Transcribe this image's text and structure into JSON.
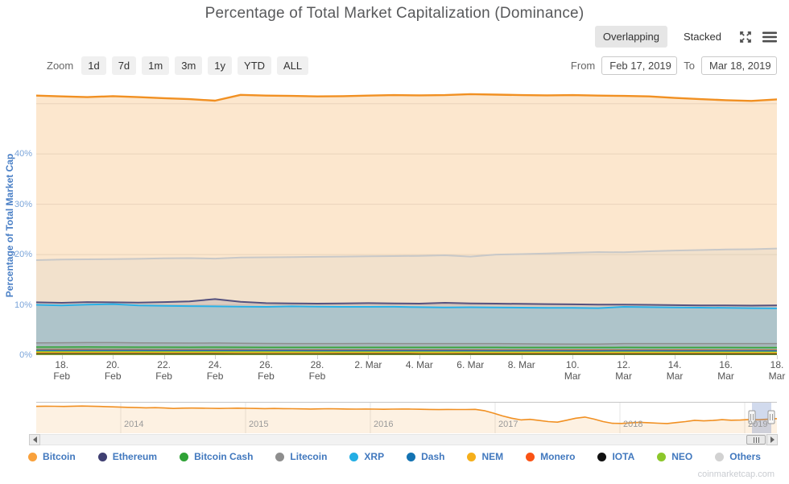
{
  "title": "Percentage of Total Market Capitalization (Dominance)",
  "watermark": "coinmarketcap.com",
  "mode_toggle": {
    "overlapping": "Overlapping",
    "stacked": "Stacked"
  },
  "range_selector": {
    "zoom_label": "Zoom",
    "buttons": [
      "1d",
      "7d",
      "1m",
      "3m",
      "1y",
      "YTD",
      "ALL"
    ],
    "from_label": "From",
    "from_value": "Feb 17, 2019",
    "to_label": "To",
    "to_value": "Mar 18, 2019"
  },
  "y_axis": {
    "title": "Percentage of Total Market Cap",
    "tick_labels": [
      {
        "value": 0,
        "label": "0%"
      },
      {
        "value": 10,
        "label": "10%"
      },
      {
        "value": 20,
        "label": "20%"
      },
      {
        "value": 30,
        "label": "30%"
      },
      {
        "value": 40,
        "label": "40%"
      }
    ],
    "gridlines": [
      0,
      10,
      20,
      30,
      40,
      50
    ],
    "max": 53.8
  },
  "x_axis": {
    "ticks": [
      {
        "day": 1,
        "l1": "18.",
        "l2": "Feb"
      },
      {
        "day": 3,
        "l1": "20.",
        "l2": "Feb"
      },
      {
        "day": 5,
        "l1": "22.",
        "l2": "Feb"
      },
      {
        "day": 7,
        "l1": "24.",
        "l2": "Feb"
      },
      {
        "day": 9,
        "l1": "26.",
        "l2": "Feb"
      },
      {
        "day": 11,
        "l1": "28.",
        "l2": "Feb"
      },
      {
        "day": 13,
        "l1": "2. Mar",
        "l2": ""
      },
      {
        "day": 15,
        "l1": "4. Mar",
        "l2": ""
      },
      {
        "day": 17,
        "l1": "6. Mar",
        "l2": ""
      },
      {
        "day": 19,
        "l1": "8. Mar",
        "l2": ""
      },
      {
        "day": 21,
        "l1": "10.",
        "l2": "Mar"
      },
      {
        "day": 23,
        "l1": "12.",
        "l2": "Mar"
      },
      {
        "day": 25,
        "l1": "14.",
        "l2": "Mar"
      },
      {
        "day": 27,
        "l1": "16.",
        "l2": "Mar"
      },
      {
        "day": 29,
        "l1": "18.",
        "l2": "Mar"
      }
    ]
  },
  "chart_data": {
    "type": "area",
    "mode": "overlapping",
    "x_start": "Feb 17, 2019",
    "x_end": "Mar 18, 2019",
    "days": 29,
    "ylim": [
      0,
      53.8
    ],
    "ylabel": "Percentage of Total Market Cap",
    "grid": true,
    "legend_position": "bottom",
    "series": [
      {
        "name": "Bitcoin",
        "color": "#F19022",
        "fill_opacity": 0.22,
        "line_width": 2.4,
        "values": [
          51.6,
          51.45,
          51.3,
          51.5,
          51.3,
          51.1,
          50.9,
          50.6,
          51.75,
          51.6,
          51.55,
          51.45,
          51.5,
          51.6,
          51.7,
          51.65,
          51.7,
          51.9,
          51.8,
          51.7,
          51.65,
          51.7,
          51.6,
          51.55,
          51.45,
          51.15,
          50.9,
          50.7,
          50.55,
          50.85
        ]
      },
      {
        "name": "Others",
        "color": "#c8c8c8",
        "fill_opacity": 0.18,
        "line_width": 2,
        "values": [
          18.9,
          19.0,
          19.05,
          19.1,
          19.15,
          19.25,
          19.3,
          19.2,
          19.4,
          19.45,
          19.5,
          19.55,
          19.6,
          19.65,
          19.7,
          19.75,
          19.85,
          19.6,
          20.0,
          20.1,
          20.2,
          20.35,
          20.5,
          20.45,
          20.65,
          20.8,
          20.9,
          21.0,
          21.05,
          21.2
        ]
      },
      {
        "name": "Ethereum",
        "color": "#55517e",
        "fill_opacity": 0.15,
        "line_width": 2,
        "values": [
          10.5,
          10.4,
          10.55,
          10.5,
          10.45,
          10.55,
          10.7,
          11.15,
          10.6,
          10.35,
          10.3,
          10.25,
          10.3,
          10.35,
          10.3,
          10.25,
          10.4,
          10.3,
          10.25,
          10.2,
          10.15,
          10.1,
          10.05,
          10.05,
          10.0,
          9.95,
          9.9,
          9.9,
          9.85,
          9.9
        ]
      },
      {
        "name": "XRP",
        "color": "#28b1e8",
        "fill_opacity": 0.25,
        "line_width": 2,
        "values": [
          10.0,
          9.9,
          10.05,
          10.15,
          9.9,
          9.8,
          9.75,
          9.7,
          9.65,
          9.6,
          9.7,
          9.65,
          9.6,
          9.6,
          9.62,
          9.55,
          9.5,
          9.52,
          9.5,
          9.45,
          9.4,
          9.4,
          9.35,
          9.6,
          9.55,
          9.5,
          9.45,
          9.4,
          9.35,
          9.3
        ]
      },
      {
        "name": "Dash",
        "color": "#1673b9",
        "fill_opacity": 0.15,
        "line_width": 1.5,
        "values": [
          0.96,
          0.95,
          0.95,
          0.94,
          0.94,
          0.93,
          0.93,
          0.92,
          0.92,
          0.91,
          0.91,
          0.9,
          0.9,
          0.9,
          0.9,
          0.89,
          0.89,
          0.89,
          0.88,
          0.88,
          0.88,
          0.87,
          0.87,
          0.88,
          0.88,
          0.87,
          0.87,
          0.86,
          0.86,
          0.86
        ]
      },
      {
        "name": "Litecoin",
        "color": "#8e8e8e",
        "fill_opacity": 0.25,
        "line_width": 1.5,
        "values": [
          2.45,
          2.46,
          2.5,
          2.5,
          2.45,
          2.42,
          2.4,
          2.42,
          2.35,
          2.32,
          2.3,
          2.3,
          2.31,
          2.32,
          2.3,
          2.3,
          2.31,
          2.3,
          2.3,
          2.26,
          2.22,
          2.2,
          2.2,
          2.3,
          2.3,
          2.31,
          2.3,
          2.3,
          2.3,
          2.3
        ]
      },
      {
        "name": "Bitcoin Cash",
        "color": "#36a537",
        "fill_opacity": 0.25,
        "line_width": 1.5,
        "values": [
          1.62,
          1.61,
          1.63,
          1.62,
          1.6,
          1.6,
          1.59,
          1.6,
          1.58,
          1.57,
          1.57,
          1.56,
          1.56,
          1.57,
          1.56,
          1.55,
          1.56,
          1.55,
          1.55,
          1.54,
          1.54,
          1.53,
          1.53,
          1.55,
          1.54,
          1.54,
          1.53,
          1.53,
          1.52,
          1.52
        ]
      },
      {
        "name": "Monero",
        "color": "#fb4e14",
        "fill_opacity": 0.2,
        "line_width": 1.5,
        "values": [
          1.06,
          1.05,
          1.05,
          1.04,
          1.04,
          1.03,
          1.03,
          1.02,
          1.02,
          1.01,
          1.01,
          1.0,
          1.0,
          1.0,
          1.0,
          0.99,
          0.99,
          0.99,
          0.98,
          0.98,
          0.98,
          0.97,
          0.97,
          0.98,
          0.98,
          0.97,
          0.97,
          0.96,
          0.96,
          0.96
        ]
      },
      {
        "name": "NEM",
        "color": "#f7b01e",
        "fill_opacity": 0.35,
        "line_width": 1.5,
        "values": [
          0.5,
          0.5,
          0.49,
          0.49,
          0.49,
          0.48,
          0.48,
          0.48,
          0.47,
          0.47,
          0.47,
          0.46,
          0.46,
          0.46,
          0.46,
          0.45,
          0.45,
          0.45,
          0.45,
          0.44,
          0.44,
          0.44,
          0.44,
          0.44,
          0.44,
          0.43,
          0.43,
          0.43,
          0.43,
          0.43
        ]
      },
      {
        "name": "IOTA",
        "color": "#131313",
        "fill_opacity": 0.2,
        "line_width": 1.5,
        "values": [
          0.36,
          0.36,
          0.35,
          0.35,
          0.35,
          0.34,
          0.34,
          0.34,
          0.33,
          0.33,
          0.33,
          0.33,
          0.32,
          0.32,
          0.32,
          0.32,
          0.32,
          0.31,
          0.31,
          0.31,
          0.31,
          0.31,
          0.3,
          0.3,
          0.3,
          0.3,
          0.3,
          0.3,
          0.3,
          0.3
        ]
      },
      {
        "name": "NEO",
        "color": "#8dc62e",
        "fill_opacity": 0.55,
        "line_width": 2,
        "values": [
          0.66,
          0.66,
          0.65,
          0.65,
          0.65,
          0.64,
          0.64,
          0.64,
          0.63,
          0.63,
          0.63,
          0.62,
          0.62,
          0.62,
          0.62,
          0.61,
          0.61,
          0.61,
          0.61,
          0.6,
          0.6,
          0.6,
          0.6,
          0.61,
          0.61,
          0.6,
          0.6,
          0.6,
          0.6,
          0.6
        ]
      }
    ]
  },
  "navigator": {
    "series_name": "Bitcoin",
    "color": "#F19022",
    "fill_opacity": 0.13,
    "years": [
      "2014",
      "2015",
      "2016",
      "2017",
      "2018",
      "2019"
    ],
    "selection_color": "rgba(102,133,194,0.3)",
    "values": [
      94,
      94.5,
      94.2,
      93.8,
      94.6,
      95.1,
      94.5,
      93.6,
      92.6,
      91.6,
      90.6,
      89.6,
      88.8,
      89.3,
      88.2,
      86.6,
      87.6,
      88.1,
      87.6,
      87.1,
      86.6,
      87.1,
      87.7,
      87.2,
      86.6,
      86.1,
      86.6,
      86.1,
      85.6,
      85.1,
      84.6,
      85.1,
      85.7,
      85.2,
      84.7,
      84.2,
      84.7,
      84.2,
      83.7,
      84.2,
      84.7,
      84.2,
      83.7,
      83.2,
      82.7,
      83.2,
      83.0,
      82.8,
      83.4,
      79,
      70,
      60,
      52,
      46,
      48,
      44,
      40,
      38,
      45,
      52,
      56,
      49,
      40,
      34,
      33.5,
      35.5,
      37.5,
      36,
      34.2,
      33.2,
      36.5,
      40,
      44.5,
      42.5,
      44,
      47,
      45,
      45.5,
      47.5,
      46.5,
      48.2,
      50.6
    ]
  },
  "legend": {
    "items": [
      {
        "label": "Bitcoin",
        "color": "#F9A13C"
      },
      {
        "label": "Ethereum",
        "color": "#3F3F72"
      },
      {
        "label": "Bitcoin Cash",
        "color": "#2FA236"
      },
      {
        "label": "Litecoin",
        "color": "#8E8E8E"
      },
      {
        "label": "XRP",
        "color": "#23AEE4"
      },
      {
        "label": "Dash",
        "color": "#1473B2"
      },
      {
        "label": "NEM",
        "color": "#F5AF1B"
      },
      {
        "label": "Monero",
        "color": "#FA5315"
      },
      {
        "label": "IOTA",
        "color": "#111111"
      },
      {
        "label": "NEO",
        "color": "#8CC72B"
      },
      {
        "label": "Others",
        "color": "#D2D2D2"
      }
    ]
  }
}
